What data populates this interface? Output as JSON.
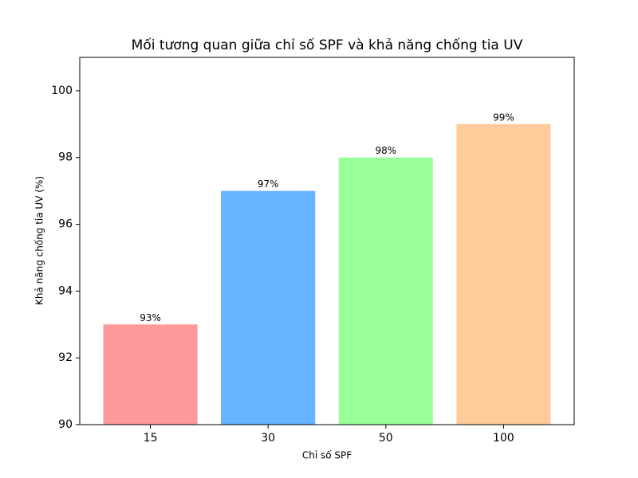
{
  "chart_data": {
    "type": "bar",
    "title": "Mối tương quan giữa chỉ số SPF và khả năng chống tia UV",
    "x_label": "Chỉ số SPF",
    "y_label": "Khả năng chống tia UV (%)",
    "categories": [
      "15",
      "30",
      "50",
      "100"
    ],
    "values": [
      93,
      97,
      98,
      99
    ],
    "value_labels": [
      "93%",
      "97%",
      "98%",
      "99%"
    ],
    "colors": [
      "#ff9999",
      "#66b3ff",
      "#99ff99",
      "#ffcc99"
    ],
    "ylim": [
      90,
      101
    ],
    "yticks": [
      90,
      92,
      94,
      96,
      98,
      100
    ],
    "grid": false
  }
}
